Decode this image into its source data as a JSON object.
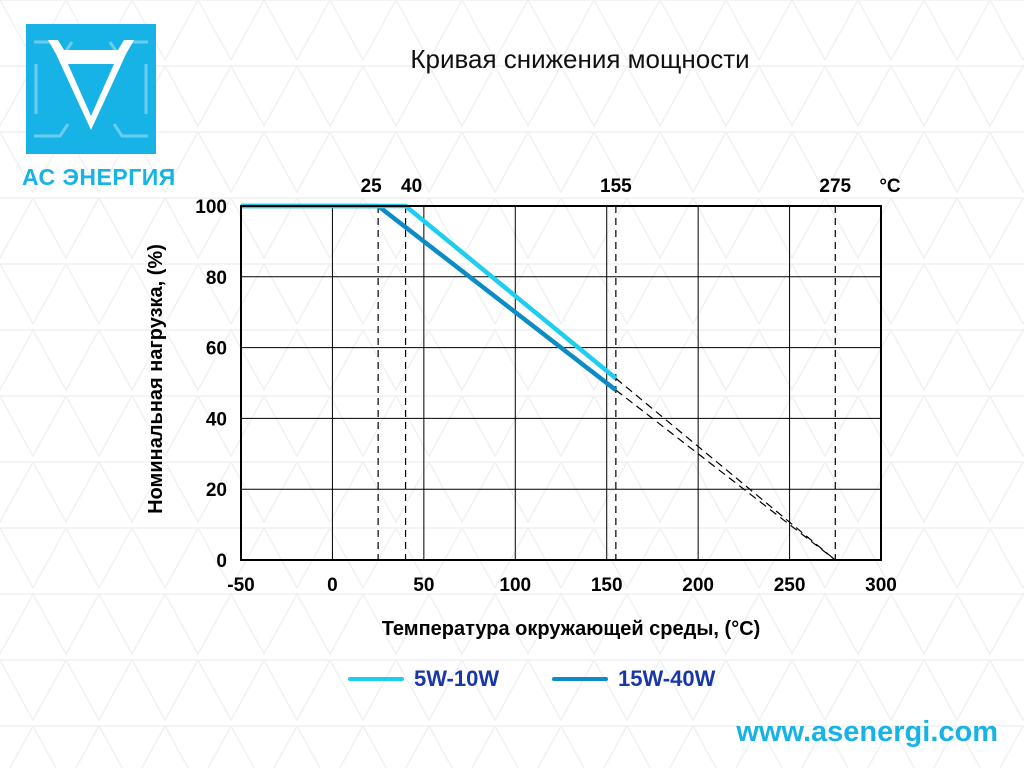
{
  "brand": {
    "logo_text": "АС ЭНЕРГИЯ",
    "website": "www.asenergi.com",
    "color": "#18b3e6"
  },
  "header": {
    "title": "Кривая снижения мощности"
  },
  "chart_data": {
    "type": "line",
    "title": "Кривая снижения мощности",
    "xlabel": "Температура окружающей среды, (°C)",
    "ylabel": "Номинальная нагрузка, (%)",
    "xlim": [
      -50,
      300
    ],
    "ylim": [
      0,
      100
    ],
    "x_ticks": [
      -50,
      0,
      50,
      100,
      150,
      200,
      250,
      300
    ],
    "y_ticks": [
      0,
      20,
      40,
      60,
      80,
      100
    ],
    "grid": true,
    "top_markers": [
      25,
      40,
      155,
      275
    ],
    "top_unit": "°C",
    "series": [
      {
        "name": "5W-10W",
        "color": "#1fcdef",
        "x": [
          -50,
          40,
          155
        ],
        "y": [
          100,
          100,
          51.3
        ],
        "extrapolation": {
          "x": [
            155,
            275
          ],
          "y": [
            51.3,
            0
          ]
        }
      },
      {
        "name": "15W-40W",
        "color": "#0b8cc4",
        "x": [
          -50,
          25,
          155
        ],
        "y": [
          100,
          100,
          48.0
        ],
        "extrapolation": {
          "x": [
            155,
            275
          ],
          "y": [
            48.0,
            0
          ]
        }
      }
    ],
    "legend_position": "bottom"
  }
}
